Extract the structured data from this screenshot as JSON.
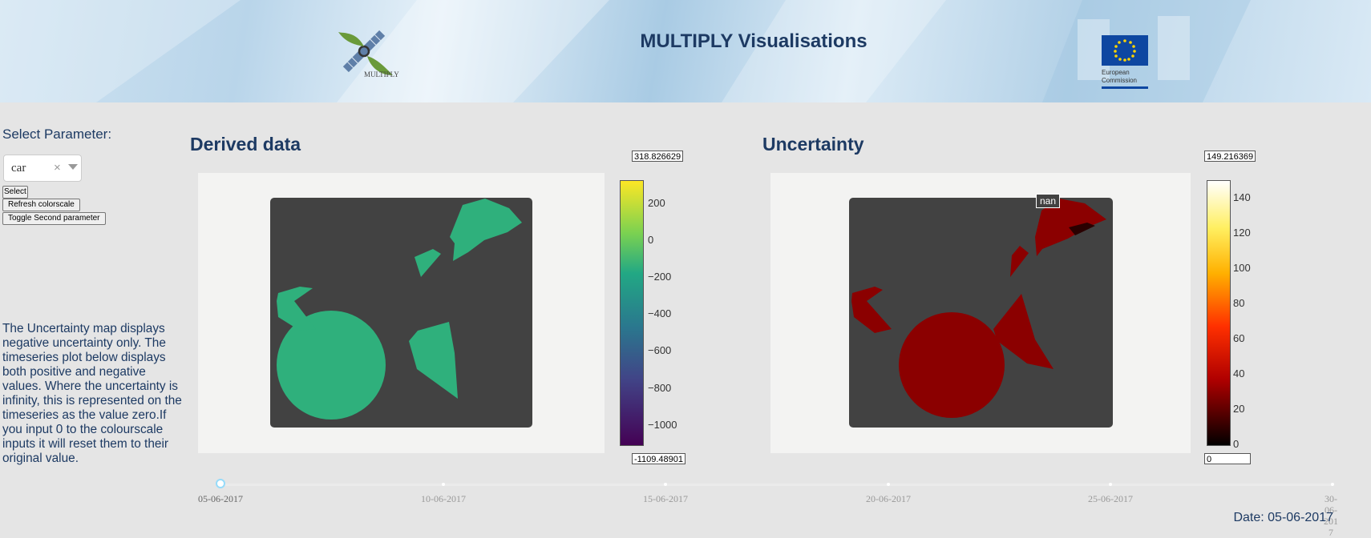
{
  "header": {
    "title": "MULTIPLY Visualisations",
    "logo_text": "MULTIPLY",
    "eu_logo_text": "European Commission"
  },
  "sidebar": {
    "select_label": "Select Parameter:",
    "dropdown_value": "car",
    "select_button": "Select",
    "refresh_button": "Refresh colorscale",
    "toggle_button": "Toggle Second parameter",
    "info_text": "The Uncertainty map displays negative uncertainty only. The timeseries plot below displays both positive and negative values. Where the uncertainty is infinity, this is represented on the timeseries as the value zero.If you input 0 to the colourscale inputs it will reset them to their original value."
  },
  "derived": {
    "title": "Derived data",
    "colorscale_max": "318.826629",
    "colorscale_min": "-1109.48901",
    "colorbar_ticks": [
      "200",
      "0",
      "−200",
      "−400",
      "−600",
      "−800",
      "−1000"
    ],
    "colormap": "viridis",
    "fill_color": "#2fb07c",
    "background_color": "#424242"
  },
  "uncertainty": {
    "title": "Uncertainty",
    "colorscale_max": "149.216369",
    "colorscale_min": "0",
    "colorbar_ticks": [
      "140",
      "120",
      "100",
      "80",
      "60",
      "40",
      "20",
      "0"
    ],
    "colormap": "hot",
    "fill_color": "#8b0000",
    "background_color": "#424242",
    "hover_label": "nan"
  },
  "slider": {
    "marks": [
      "05-06-2017",
      "10-06-2017",
      "15-06-2017",
      "20-06-2017",
      "25-06-2017",
      "30-06-2017"
    ],
    "selected_index": 0
  },
  "date_display": "Date: 05-06-2017"
}
